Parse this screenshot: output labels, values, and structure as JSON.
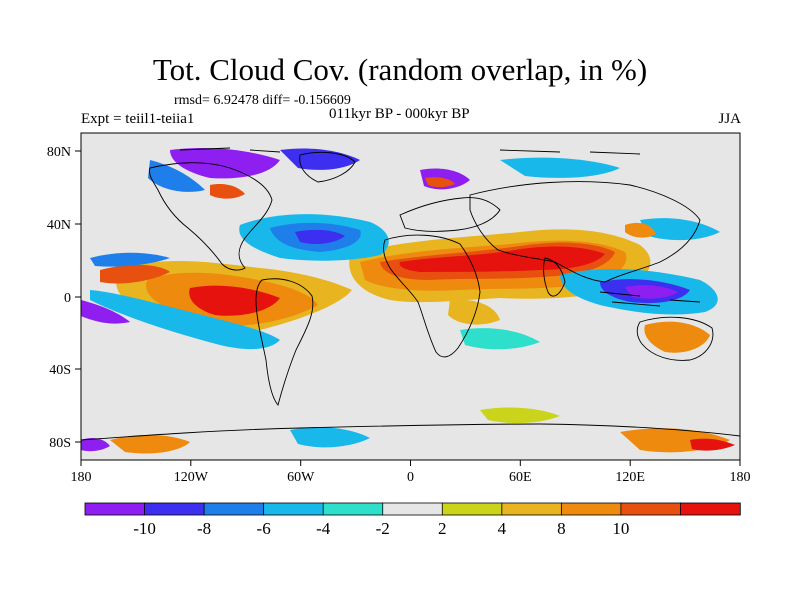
{
  "title": "Tot. Cloud Cov. (random overlap, in %)",
  "stats_text": "rmsd= 6.92478 diff= -0.156609",
  "experiment_text": "Expt = teiil1-teiia1",
  "period_text": "011kyr BP - 000kyr BP",
  "season_text": "JJA",
  "x_ticks": [
    "180",
    "120W",
    "60W",
    "0",
    "60E",
    "120E",
    "180"
  ],
  "y_ticks": [
    "80N",
    "40N",
    "0",
    "40S",
    "80S"
  ],
  "colorbar": {
    "levels": [
      "-10",
      "-8",
      "-6",
      "-4",
      "-2",
      "2",
      "4",
      "8",
      "10"
    ],
    "colors": [
      "#8f1ff0",
      "#3c2ff0",
      "#1f7fea",
      "#19b8ea",
      "#2ee0cc",
      "#e6e6e6",
      "#c9d41a",
      "#e8b41f",
      "#ee8a0e",
      "#e85010",
      "#e6120e"
    ]
  },
  "ocean_background_color": "#e6e6e6",
  "coastline_color": "#000000"
}
